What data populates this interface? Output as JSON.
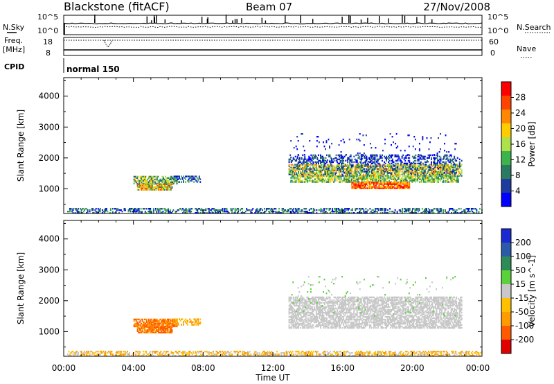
{
  "header": {
    "station": "Blackstone (fitACF)",
    "beam": "Beam 07",
    "date": "27/Nov/2008"
  },
  "top_panels": {
    "nsky_label": "N.Sky",
    "nsky_ticks": [
      "10^5",
      "10^0"
    ],
    "nsearch_label": "N.Search",
    "nsearch_ticks": [
      "10^5",
      "10^0"
    ],
    "freq_label": "Freq.",
    "freq_unit": "[MHz]",
    "freq_ticks": [
      "18",
      "8"
    ],
    "nave_label": "Nave",
    "nave_ticks": [
      "60",
      "0"
    ],
    "cpid_label": "CPID",
    "cpid_value": "normal 150"
  },
  "colors": {
    "power_scale": [
      "#0000ff",
      "#1e3c9e",
      "#2a7a62",
      "#3cb44b",
      "#aee04a",
      "#ffcc00",
      "#ff8800",
      "#ff4400",
      "#ff0000"
    ],
    "velocity_scale": [
      "#e00000",
      "#ff5a00",
      "#ff9a00",
      "#ffc000",
      "#c8c8c8",
      "#5ad23c",
      "#2e8a56",
      "#2a5aa8",
      "#1a2ad0"
    ]
  },
  "chart_data": [
    {
      "type": "heatmap",
      "name": "power",
      "ylabel": "Slant Range [km]",
      "yticks": [
        1000,
        2000,
        3000,
        4000
      ],
      "ylim": [
        200,
        4600
      ],
      "xlim": [
        0,
        24
      ],
      "colorbar_label": "Power [dB]",
      "colorbar_ticks": [
        "4",
        "8",
        "12",
        "16",
        "20",
        "24",
        "28"
      ],
      "regions": [
        {
          "t": [
            0.2,
            24.0
          ],
          "r": [
            200,
            350
          ],
          "density": 0.45,
          "c": [
            0,
            1,
            2,
            3
          ]
        },
        {
          "t": [
            4.0,
            6.5
          ],
          "r": [
            1150,
            1400
          ],
          "density": 0.7,
          "c": [
            1,
            2,
            3,
            4,
            5
          ]
        },
        {
          "t": [
            4.2,
            6.2
          ],
          "r": [
            950,
            1150
          ],
          "density": 0.8,
          "c": [
            2,
            3,
            4,
            5,
            6,
            7
          ]
        },
        {
          "t": [
            6.3,
            7.8
          ],
          "r": [
            1200,
            1400
          ],
          "density": 0.45,
          "c": [
            0,
            1,
            2,
            3
          ]
        },
        {
          "t": [
            12.9,
            22.8
          ],
          "r": [
            1400,
            1800
          ],
          "density": 0.7,
          "c": [
            1,
            2,
            3,
            4,
            5,
            6
          ]
        },
        {
          "t": [
            12.9,
            22.8
          ],
          "r": [
            1800,
            2100
          ],
          "density": 0.35,
          "c": [
            0,
            1,
            2
          ]
        },
        {
          "t": [
            13.0,
            22.6
          ],
          "r": [
            1200,
            1400
          ],
          "density": 0.65,
          "c": [
            2,
            3,
            4,
            5
          ]
        },
        {
          "t": [
            16.5,
            19.8
          ],
          "r": [
            1000,
            1200
          ],
          "density": 0.8,
          "c": [
            5,
            6,
            7,
            8
          ]
        },
        {
          "t": [
            13.0,
            22.5
          ],
          "r": [
            1500,
            2800
          ],
          "density": 0.03,
          "c": [
            0,
            1
          ]
        }
      ]
    },
    {
      "type": "heatmap",
      "name": "velocity",
      "xlabel": "Time UT",
      "ylabel": "Slant Range [km]",
      "yticks": [
        1000,
        2000,
        3000,
        4000
      ],
      "ylim": [
        200,
        4600
      ],
      "xlim": [
        0,
        24
      ],
      "xticks": [
        "00:00",
        "04:00",
        "08:00",
        "12:00",
        "16:00",
        "20:00",
        "00:00"
      ],
      "colorbar_label": "Velocity [m s^-1]",
      "colorbar_ticks": [
        "-200",
        "-100",
        "-50",
        "-15",
        "15",
        "50",
        "100",
        "200"
      ],
      "regions": [
        {
          "t": [
            0.2,
            24.0
          ],
          "r": [
            200,
            350
          ],
          "density": 0.45,
          "c": [
            2,
            3,
            4
          ]
        },
        {
          "t": [
            4.0,
            6.5
          ],
          "r": [
            1150,
            1400
          ],
          "density": 0.75,
          "c": [
            1,
            2
          ]
        },
        {
          "t": [
            4.2,
            6.2
          ],
          "r": [
            950,
            1150
          ],
          "density": 0.8,
          "c": [
            1,
            2
          ]
        },
        {
          "t": [
            6.3,
            7.8
          ],
          "r": [
            1200,
            1400
          ],
          "density": 0.45,
          "c": [
            2,
            3
          ]
        },
        {
          "t": [
            12.9,
            22.8
          ],
          "r": [
            1100,
            2100
          ],
          "density": 0.65,
          "c": [
            4
          ]
        },
        {
          "t": [
            13.0,
            22.5
          ],
          "r": [
            1500,
            2800
          ],
          "density": 0.03,
          "c": [
            4,
            5
          ]
        }
      ]
    }
  ]
}
